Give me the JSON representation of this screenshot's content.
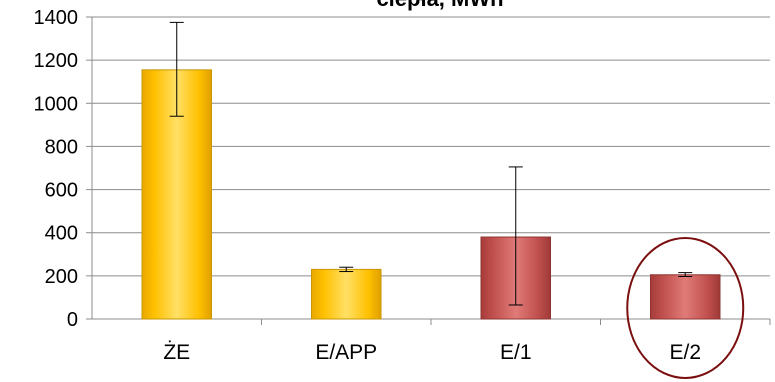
{
  "chart_data": {
    "type": "bar",
    "title": "ciepła, MWh",
    "xlabel": "",
    "ylabel": "",
    "ylim": [
      0,
      1400
    ],
    "yticks": [
      0,
      200,
      400,
      600,
      800,
      1000,
      1200,
      1400
    ],
    "grid": true,
    "categories": [
      "ŻE",
      "E/APP",
      "E/1",
      "E/2"
    ],
    "values": [
      1155,
      230,
      380,
      205
    ],
    "error_bars": [
      {
        "low": 940,
        "high": 1375
      },
      {
        "low": 220,
        "high": 240
      },
      {
        "low": 65,
        "high": 705
      },
      {
        "low": 197,
        "high": 215
      }
    ],
    "bar_colors": [
      "#ffc000",
      "#ffc000",
      "#c0504d",
      "#c0504d"
    ],
    "highlighted_category": "E/2",
    "highlight_color": "#7b0f0f"
  }
}
